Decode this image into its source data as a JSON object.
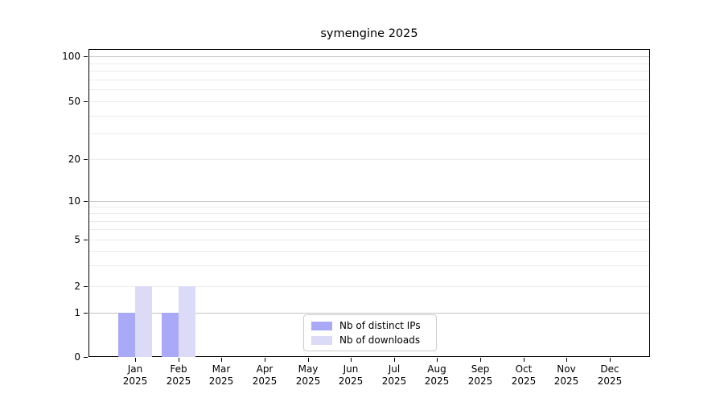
{
  "chart_data": {
    "type": "bar",
    "title": "symengine 2025",
    "xlabel": "",
    "ylabel": "",
    "months": [
      "Jan",
      "Feb",
      "Mar",
      "Apr",
      "May",
      "Jun",
      "Jul",
      "Aug",
      "Sep",
      "Oct",
      "Nov",
      "Dec"
    ],
    "year": "2025",
    "categories": [
      "Jan 2025",
      "Feb 2025",
      "Mar 2025",
      "Apr 2025",
      "May 2025",
      "Jun 2025",
      "Jul 2025",
      "Aug 2025",
      "Sep 2025",
      "Oct 2025",
      "Nov 2025",
      "Dec 2025"
    ],
    "series": [
      {
        "name": "Nb of distinct IPs",
        "color": "#a9a9f7",
        "values": [
          1,
          1,
          0,
          0,
          0,
          0,
          0,
          0,
          0,
          0,
          0,
          0
        ]
      },
      {
        "name": "Nb of downloads",
        "color": "#dbdbf8",
        "values": [
          2,
          2,
          0,
          0,
          0,
          0,
          0,
          0,
          0,
          0,
          0,
          0
        ]
      }
    ],
    "yticks": [
      0,
      1,
      2,
      5,
      10,
      20,
      50,
      100
    ],
    "y_minor_ticks": [
      3,
      4,
      6,
      7,
      8,
      9,
      30,
      40,
      60,
      70,
      80,
      90
    ],
    "y_major_gridlines": [
      1,
      10,
      100
    ],
    "yscale": "log-like",
    "ylim_labels": [
      0,
      100
    ],
    "grid": true,
    "legend_position": "bottom-center",
    "colors": {
      "major_grid": "#c4c4c4",
      "minor_grid": "#ebebeb",
      "axis": "#000000",
      "legend_border": "#cccccc"
    }
  }
}
